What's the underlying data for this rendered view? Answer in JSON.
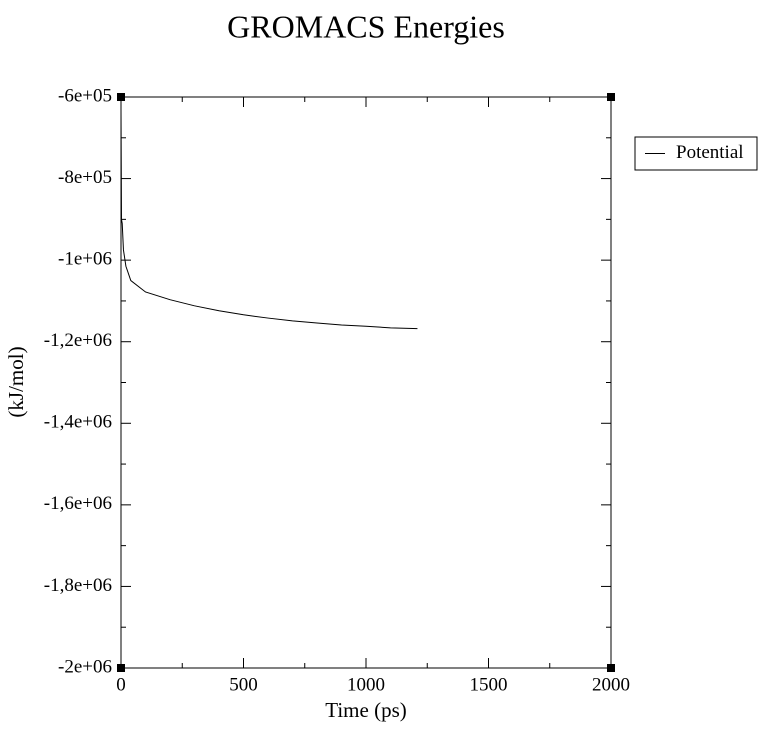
{
  "chart_data": {
    "type": "line",
    "title": "GROMACS Energies",
    "x_label": "Time (ps)",
    "y_label": "(kJ/mol)",
    "xlim": [
      0,
      2000
    ],
    "xticks": [
      0,
      500,
      1000,
      1500,
      2000
    ],
    "ylim": [
      -2000000,
      -600000
    ],
    "yticks": [
      {
        "value": -2000000,
        "label": "-2e+06"
      },
      {
        "value": -1800000,
        "label": "-1,8e+06"
      },
      {
        "value": -1600000,
        "label": "-1,6e+06"
      },
      {
        "value": -1400000,
        "label": "-1,4e+06"
      },
      {
        "value": -1200000,
        "label": "-1,2e+06"
      },
      {
        "value": -1000000,
        "label": "-1e+06"
      },
      {
        "value": -800000,
        "label": "-8e+05"
      },
      {
        "value": -600000,
        "label": "-6e+05"
      }
    ],
    "legend_position": "outside-right",
    "series": [
      {
        "name": "Potential",
        "color": "#000000",
        "x": [
          0,
          2,
          5,
          10,
          20,
          40,
          100,
          200,
          300,
          400,
          500,
          600,
          700,
          800,
          900,
          1000,
          1100,
          1210
        ],
        "values": [
          -630000,
          -900000,
          -910000,
          -975000,
          -1015000,
          -1050000,
          -1078000,
          -1097000,
          -1112000,
          -1124000,
          -1134000,
          -1142000,
          -1149000,
          -1154000,
          -1159000,
          -1162000,
          -1166000,
          -1168000
        ]
      }
    ]
  }
}
